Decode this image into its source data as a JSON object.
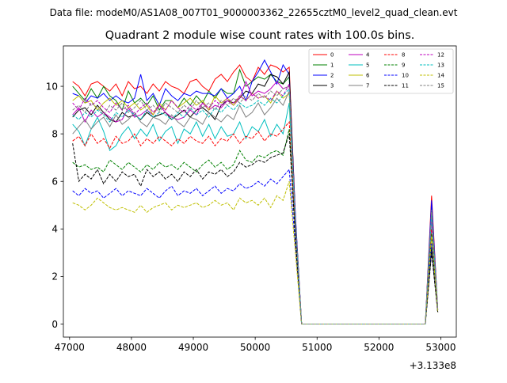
{
  "figure": {
    "suptitle": "Data file: modeM0/AS1A08_007T01_9000003362_22655cztM0_level2_quad_clean.evt"
  },
  "chart_data": {
    "type": "line",
    "title": "Quadrant 2 module wise count rates with 100.0s bins.",
    "xlabel": "",
    "ylabel": "",
    "x_offset_label": "+3.133e8",
    "xlim": [
      46900,
      53250
    ],
    "ylim": [
      -0.55,
      11.7
    ],
    "x_ticks": [
      47000,
      48000,
      49000,
      50000,
      51000,
      52000,
      53000
    ],
    "y_ticks": [
      0,
      2,
      4,
      6,
      8,
      10
    ],
    "grid": false,
    "legend": {
      "placement": "top-right",
      "columns": 4
    },
    "x": [
      47050,
      47150,
      47250,
      47350,
      47450,
      47550,
      47650,
      47750,
      47850,
      47950,
      48050,
      48150,
      48250,
      48350,
      48450,
      48550,
      48650,
      48750,
      48850,
      48950,
      49050,
      49150,
      49250,
      49350,
      49450,
      49550,
      49650,
      49750,
      49850,
      49950,
      50050,
      50150,
      50250,
      50350,
      50450,
      50550,
      50650,
      50750,
      50850,
      50950,
      51050,
      51150,
      51250,
      51350,
      51450,
      51550,
      51650,
      51750,
      51850,
      51950,
      52050,
      52150,
      52250,
      52350,
      52450,
      52550,
      52650,
      52750,
      52850,
      52950
    ],
    "series": [
      {
        "name": "0",
        "color": "#ff0000",
        "dash": "solid",
        "values": [
          10.2,
          10.0,
          9.6,
          10.1,
          10.2,
          10.0,
          9.8,
          10.1,
          9.6,
          10.2,
          9.9,
          10.0,
          9.7,
          10.1,
          9.8,
          10.2,
          10.0,
          9.9,
          9.7,
          10.2,
          10.3,
          10.0,
          9.8,
          10.3,
          10.5,
          10.2,
          10.6,
          10.9,
          10.4,
          10.2,
          10.8,
          10.5,
          10.9,
          10.8,
          10.6,
          10.8,
          4.5,
          0.0,
          0.0,
          0.0,
          0.0,
          0.0,
          0.0,
          0.0,
          0.0,
          0.0,
          0.0,
          0.0,
          0.0,
          0.0,
          0.0,
          0.0,
          0.0,
          0.0,
          0.0,
          0.0,
          0.0,
          0.0,
          5.4,
          0.6
        ]
      },
      {
        "name": "1",
        "color": "#008000",
        "dash": "solid",
        "values": [
          10.0,
          9.7,
          9.4,
          9.9,
          9.5,
          10.0,
          9.6,
          9.4,
          9.0,
          9.8,
          9.3,
          9.5,
          9.2,
          9.6,
          9.0,
          9.4,
          9.4,
          9.1,
          9.5,
          9.2,
          9.6,
          9.3,
          9.8,
          9.5,
          9.9,
          9.7,
          9.7,
          10.7,
          10.0,
          10.2,
          10.4,
          10.3,
          10.5,
          10.2,
          10.1,
          10.4,
          4.0,
          0.0,
          0.0,
          0.0,
          0.0,
          0.0,
          0.0,
          0.0,
          0.0,
          0.0,
          0.0,
          0.0,
          0.0,
          0.0,
          0.0,
          0.0,
          0.0,
          0.0,
          0.0,
          0.0,
          0.0,
          0.0,
          5.0,
          0.5
        ]
      },
      {
        "name": "2",
        "color": "#0000ff",
        "dash": "solid",
        "values": [
          9.7,
          9.6,
          9.3,
          9.6,
          9.5,
          9.7,
          9.4,
          9.6,
          9.4,
          9.3,
          9.5,
          10.5,
          9.4,
          9.7,
          9.2,
          9.9,
          9.6,
          9.4,
          9.7,
          9.6,
          9.8,
          9.7,
          9.7,
          9.6,
          9.9,
          9.5,
          9.7,
          10.0,
          9.4,
          10.2,
          10.6,
          11.1,
          10.6,
          10.1,
          10.9,
          10.5,
          4.6,
          0.0,
          0.0,
          0.0,
          0.0,
          0.0,
          0.0,
          0.0,
          0.0,
          0.0,
          0.0,
          0.0,
          0.0,
          0.0,
          0.0,
          0.0,
          0.0,
          0.0,
          0.0,
          0.0,
          0.0,
          0.0,
          5.2,
          0.6
        ]
      },
      {
        "name": "3",
        "color": "#000000",
        "dash": "solid",
        "values": [
          8.7,
          9.0,
          9.1,
          8.8,
          9.2,
          8.9,
          8.6,
          8.5,
          8.9,
          8.7,
          8.8,
          8.6,
          8.9,
          8.7,
          8.8,
          8.9,
          8.6,
          8.8,
          9.0,
          8.7,
          9.0,
          9.1,
          8.9,
          8.6,
          9.2,
          9.4,
          9.3,
          9.5,
          9.8,
          9.7,
          10.1,
          10.0,
          10.5,
          10.4,
          10.1,
          10.6,
          4.4,
          0.0,
          0.0,
          0.0,
          0.0,
          0.0,
          0.0,
          0.0,
          0.0,
          0.0,
          0.0,
          0.0,
          0.0,
          0.0,
          0.0,
          0.0,
          0.0,
          0.0,
          0.0,
          0.0,
          0.0,
          0.0,
          3.2,
          0.5
        ]
      },
      {
        "name": "4",
        "color": "#bf00bf",
        "dash": "solid",
        "values": [
          8.8,
          9.1,
          8.5,
          9.0,
          8.7,
          8.9,
          8.7,
          8.5,
          8.6,
          9.1,
          8.7,
          8.8,
          9.0,
          8.8,
          9.2,
          8.9,
          8.7,
          8.6,
          8.7,
          9.0,
          8.8,
          9.3,
          9.0,
          9.2,
          9.1,
          9.4,
          9.2,
          9.5,
          10.2,
          9.6,
          9.8,
          9.7,
          9.9,
          10.2,
          9.9,
          10.0,
          4.3,
          0.0,
          0.0,
          0.0,
          0.0,
          0.0,
          0.0,
          0.0,
          0.0,
          0.0,
          0.0,
          0.0,
          0.0,
          0.0,
          0.0,
          0.0,
          0.0,
          0.0,
          0.0,
          0.0,
          0.0,
          0.0,
          4.6,
          0.6
        ]
      },
      {
        "name": "5",
        "color": "#00bfbf",
        "dash": "solid",
        "values": [
          8.4,
          8.1,
          7.5,
          8.2,
          8.7,
          8.1,
          7.3,
          7.5,
          8.0,
          8.3,
          7.8,
          8.2,
          7.9,
          8.4,
          7.7,
          8.1,
          8.3,
          7.6,
          8.2,
          8.0,
          8.5,
          7.9,
          8.4,
          7.8,
          8.3,
          7.9,
          8.0,
          8.5,
          7.8,
          8.3,
          8.1,
          8.6,
          7.9,
          8.4,
          8.0,
          9.3,
          4.0,
          0.0,
          0.0,
          0.0,
          0.0,
          0.0,
          0.0,
          0.0,
          0.0,
          0.0,
          0.0,
          0.0,
          0.0,
          0.0,
          0.0,
          0.0,
          0.0,
          0.0,
          0.0,
          0.0,
          0.0,
          0.0,
          4.4,
          0.6
        ]
      },
      {
        "name": "6",
        "color": "#bfbf00",
        "dash": "solid",
        "values": [
          9.4,
          9.6,
          9.3,
          9.4,
          9.0,
          9.3,
          9.5,
          9.2,
          9.4,
          9.1,
          9.3,
          9.0,
          9.2,
          8.8,
          9.3,
          9.0,
          9.4,
          9.1,
          9.3,
          9.5,
          9.2,
          9.4,
          9.0,
          9.6,
          9.3,
          9.5,
          9.2,
          9.6,
          9.4,
          9.7,
          9.5,
          9.6,
          9.3,
          9.8,
          9.5,
          9.7,
          4.2,
          0.0,
          0.0,
          0.0,
          0.0,
          0.0,
          0.0,
          0.0,
          0.0,
          0.0,
          0.0,
          0.0,
          0.0,
          0.0,
          0.0,
          0.0,
          0.0,
          0.0,
          0.0,
          0.0,
          0.0,
          0.0,
          4.7,
          0.6
        ]
      },
      {
        "name": "7",
        "color": "#808080",
        "dash": "solid",
        "values": [
          8.0,
          8.3,
          8.6,
          8.2,
          8.5,
          8.7,
          8.3,
          8.8,
          8.4,
          8.6,
          8.9,
          8.5,
          8.3,
          8.7,
          8.6,
          8.4,
          8.8,
          8.5,
          8.3,
          8.7,
          8.6,
          8.4,
          8.9,
          8.7,
          8.5,
          8.8,
          8.6,
          9.2,
          8.7,
          8.9,
          9.3,
          8.8,
          9.1,
          9.5,
          9.2,
          9.8,
          4.1,
          0.0,
          0.0,
          0.0,
          0.0,
          0.0,
          0.0,
          0.0,
          0.0,
          0.0,
          0.0,
          0.0,
          0.0,
          0.0,
          0.0,
          0.0,
          0.0,
          0.0,
          0.0,
          0.0,
          0.0,
          0.0,
          4.5,
          0.6
        ]
      },
      {
        "name": "8",
        "color": "#ff0000",
        "dash": "dashed",
        "values": [
          7.7,
          7.9,
          7.5,
          8.0,
          7.6,
          7.8,
          7.4,
          7.9,
          7.6,
          7.7,
          8.0,
          7.5,
          7.8,
          7.6,
          7.9,
          7.7,
          7.5,
          7.8,
          7.6,
          7.9,
          7.7,
          7.6,
          7.9,
          7.5,
          7.8,
          7.7,
          8.0,
          7.6,
          7.9,
          7.8,
          8.1,
          7.7,
          8.0,
          7.9,
          8.2,
          8.5,
          3.8,
          0.0,
          0.0,
          0.0,
          0.0,
          0.0,
          0.0,
          0.0,
          0.0,
          0.0,
          0.0,
          0.0,
          0.0,
          0.0,
          0.0,
          0.0,
          0.0,
          0.0,
          0.0,
          0.0,
          0.0,
          0.0,
          4.0,
          0.5
        ]
      },
      {
        "name": "9",
        "color": "#008000",
        "dash": "dashed",
        "values": [
          6.8,
          6.6,
          6.7,
          6.5,
          6.6,
          6.4,
          6.9,
          6.7,
          6.5,
          6.8,
          6.6,
          6.4,
          6.7,
          6.5,
          6.8,
          6.6,
          6.7,
          6.5,
          6.8,
          6.6,
          6.4,
          6.7,
          6.9,
          6.6,
          6.8,
          6.5,
          6.7,
          7.3,
          6.9,
          6.8,
          7.1,
          7.0,
          7.2,
          7.3,
          7.1,
          8.2,
          3.6,
          0.0,
          0.0,
          0.0,
          0.0,
          0.0,
          0.0,
          0.0,
          0.0,
          0.0,
          0.0,
          0.0,
          0.0,
          0.0,
          0.0,
          0.0,
          0.0,
          0.0,
          0.0,
          0.0,
          0.0,
          0.0,
          3.8,
          0.5
        ]
      },
      {
        "name": "10",
        "color": "#0000ff",
        "dash": "dashed",
        "values": [
          5.6,
          5.4,
          5.7,
          5.5,
          5.6,
          5.3,
          5.5,
          5.7,
          5.4,
          5.6,
          5.5,
          5.4,
          5.7,
          5.5,
          5.3,
          5.6,
          5.8,
          5.4,
          5.6,
          5.5,
          5.7,
          5.4,
          5.6,
          5.8,
          5.5,
          5.7,
          5.6,
          5.9,
          5.7,
          5.8,
          6.0,
          5.8,
          6.1,
          5.9,
          6.2,
          6.5,
          3.3,
          0.0,
          0.0,
          0.0,
          0.0,
          0.0,
          0.0,
          0.0,
          0.0,
          0.0,
          0.0,
          0.0,
          0.0,
          0.0,
          0.0,
          0.0,
          0.0,
          0.0,
          0.0,
          0.0,
          0.0,
          0.0,
          3.4,
          0.5
        ]
      },
      {
        "name": "11",
        "color": "#000000",
        "dash": "dashed",
        "values": [
          7.6,
          6.0,
          6.3,
          6.1,
          6.5,
          5.9,
          6.3,
          6.0,
          6.4,
          6.2,
          6.3,
          5.8,
          6.5,
          6.2,
          6.4,
          6.1,
          6.3,
          6.0,
          6.4,
          6.2,
          6.5,
          6.1,
          6.4,
          6.3,
          6.5,
          6.2,
          6.4,
          6.8,
          6.6,
          6.7,
          6.9,
          6.8,
          7.0,
          7.1,
          7.2,
          8.0,
          3.6,
          0.0,
          0.0,
          0.0,
          0.0,
          0.0,
          0.0,
          0.0,
          0.0,
          0.0,
          0.0,
          0.0,
          0.0,
          0.0,
          0.0,
          0.0,
          0.0,
          0.0,
          0.0,
          0.0,
          0.0,
          0.0,
          3.0,
          0.5
        ]
      },
      {
        "name": "12",
        "color": "#bf00bf",
        "dash": "dashed",
        "values": [
          9.3,
          9.0,
          9.5,
          9.2,
          9.4,
          9.1,
          8.9,
          9.3,
          9.0,
          9.2,
          8.8,
          9.1,
          9.3,
          8.9,
          9.2,
          9.0,
          9.4,
          9.1,
          8.9,
          9.2,
          9.0,
          9.3,
          9.1,
          9.4,
          9.2,
          9.5,
          9.3,
          9.6,
          9.4,
          9.7,
          9.5,
          9.6,
          9.4,
          9.8,
          9.6,
          10.1,
          4.3,
          0.0,
          0.0,
          0.0,
          0.0,
          0.0,
          0.0,
          0.0,
          0.0,
          0.0,
          0.0,
          0.0,
          0.0,
          0.0,
          0.0,
          0.0,
          0.0,
          0.0,
          0.0,
          0.0,
          0.0,
          0.0,
          4.4,
          0.6
        ]
      },
      {
        "name": "13",
        "color": "#00bfbf",
        "dash": "dashed",
        "values": [
          8.8,
          8.6,
          8.9,
          8.7,
          9.0,
          8.8,
          8.5,
          8.9,
          8.7,
          9.0,
          8.8,
          8.6,
          9.0,
          8.7,
          8.9,
          8.8,
          8.6,
          8.9,
          8.7,
          9.1,
          8.8,
          9.0,
          8.7,
          9.1,
          8.9,
          9.2,
          9.0,
          9.3,
          9.1,
          9.2,
          9.4,
          9.2,
          9.5,
          9.3,
          9.6,
          9.9,
          4.2,
          0.0,
          0.0,
          0.0,
          0.0,
          0.0,
          0.0,
          0.0,
          0.0,
          0.0,
          0.0,
          0.0,
          0.0,
          0.0,
          0.0,
          0.0,
          0.0,
          0.0,
          0.0,
          0.0,
          0.0,
          0.0,
          4.6,
          0.6
        ]
      },
      {
        "name": "14",
        "color": "#bfbf00",
        "dash": "dashed",
        "values": [
          5.1,
          5.0,
          4.8,
          5.0,
          5.3,
          5.1,
          4.9,
          4.8,
          4.9,
          4.8,
          4.7,
          5.0,
          4.7,
          4.9,
          5.0,
          5.1,
          4.8,
          5.0,
          4.9,
          5.0,
          5.1,
          4.9,
          5.0,
          5.2,
          5.0,
          5.1,
          4.8,
          5.3,
          5.1,
          5.2,
          5.0,
          5.3,
          4.9,
          5.4,
          5.2,
          6.0,
          3.0,
          0.0,
          0.0,
          0.0,
          0.0,
          0.0,
          0.0,
          0.0,
          0.0,
          0.0,
          0.0,
          0.0,
          0.0,
          0.0,
          0.0,
          0.0,
          0.0,
          0.0,
          0.0,
          0.0,
          0.0,
          0.0,
          3.7,
          0.5
        ]
      },
      {
        "name": "15",
        "color": "#808080",
        "dash": "dashed",
        "values": [
          9.0,
          9.2,
          8.9,
          9.3,
          9.1,
          8.8,
          9.2,
          9.0,
          9.3,
          8.9,
          9.1,
          9.4,
          9.0,
          9.2,
          8.9,
          9.3,
          9.1,
          8.9,
          9.2,
          9.0,
          9.4,
          9.1,
          9.3,
          9.0,
          9.4,
          9.2,
          9.5,
          9.3,
          9.6,
          9.4,
          9.7,
          9.5,
          9.8,
          9.6,
          9.9,
          10.0,
          4.4,
          0.0,
          0.0,
          0.0,
          0.0,
          0.0,
          0.0,
          0.0,
          0.0,
          0.0,
          0.0,
          0.0,
          0.0,
          0.0,
          0.0,
          0.0,
          0.0,
          0.0,
          0.0,
          0.0,
          0.0,
          0.0,
          4.8,
          0.6
        ]
      }
    ]
  }
}
